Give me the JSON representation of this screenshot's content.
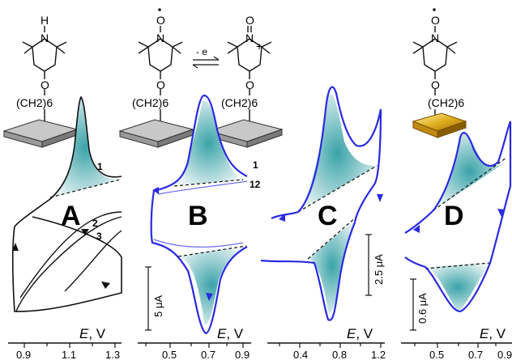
{
  "chart_data": [
    {
      "type": "line",
      "panel": "A",
      "cycle_labels": [
        "1",
        "2",
        "3"
      ],
      "xlabel": "E, V",
      "xticks": [
        "0.9",
        "1.1",
        "1.3"
      ],
      "scale_bar": "",
      "color": "#111111",
      "molecule": {
        "head": "H",
        "ring_atom": "N",
        "linker": "(CH2)6",
        "substrate": "grey"
      }
    },
    {
      "type": "line",
      "panel": "B",
      "cycle_labels": [
        "1",
        "12"
      ],
      "xlabel": "E, V",
      "xticks": [
        "0.5",
        "0.7",
        "0.9"
      ],
      "scale_bar": "5 μA",
      "color": "#2a2ae0",
      "molecule": {
        "head": "O",
        "ring_atom": "N",
        "linker": "(CH2)6",
        "substrate": "grey"
      },
      "oxidized_molecule": {
        "head": "O",
        "ring_atom": "N",
        "charge": "+",
        "linker": "(CH2)6"
      },
      "reaction_label": "- e"
    },
    {
      "type": "line",
      "panel": "C",
      "xlabel": "E, V",
      "xticks": [
        "0.4",
        "0.8",
        "1.2"
      ],
      "scale_bar": "2.5 μA",
      "color": "#2a2ae0"
    },
    {
      "type": "line",
      "panel": "D",
      "xlabel": "E, V",
      "xticks": [
        "0.5",
        "0.7",
        "0.9"
      ],
      "scale_bar": "0.6 μA",
      "color": "#2a2ae0",
      "molecule": {
        "head": "O",
        "ring_atom": "N",
        "linker": "(CH2)6",
        "substrate": "gold"
      }
    }
  ]
}
